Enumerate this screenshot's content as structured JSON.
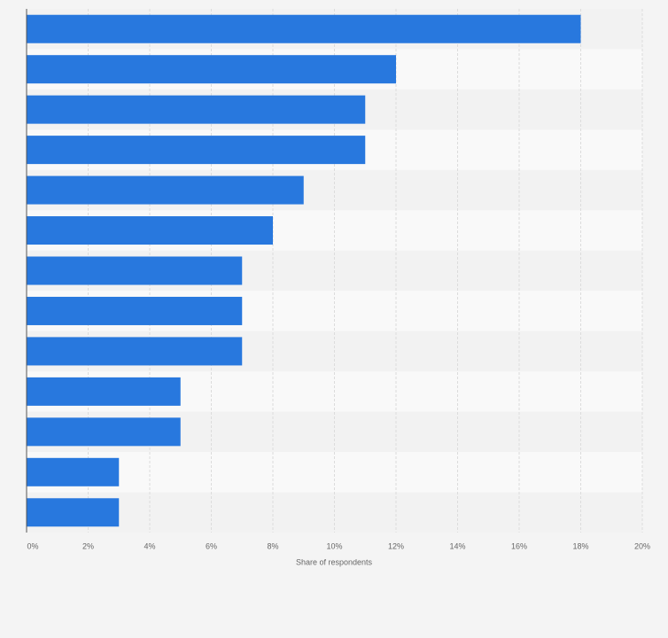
{
  "chart_data": {
    "type": "hbar",
    "x_label": "Share of respondents",
    "categories": [
      null,
      null,
      null,
      null,
      null,
      null,
      null,
      null,
      null,
      null,
      null,
      null,
      null
    ],
    "values": [
      18,
      12,
      11,
      11,
      9,
      8,
      7,
      7,
      7,
      5,
      5,
      3,
      3
    ],
    "color": "#2878de",
    "xlim": [
      0,
      20
    ],
    "xticks": [
      {
        "value": 0,
        "label": "0%"
      },
      {
        "value": 2,
        "label": "2%"
      },
      {
        "value": 4,
        "label": "4%"
      },
      {
        "value": 6,
        "label": "6%"
      },
      {
        "value": 8,
        "label": "8%"
      },
      {
        "value": 10,
        "label": "10%"
      },
      {
        "value": 12,
        "label": "12%"
      },
      {
        "value": 14,
        "label": "14%"
      },
      {
        "value": 16,
        "label": "16%"
      },
      {
        "value": 18,
        "label": "18%"
      },
      {
        "value": 20,
        "label": "20%"
      }
    ],
    "grid": true
  }
}
